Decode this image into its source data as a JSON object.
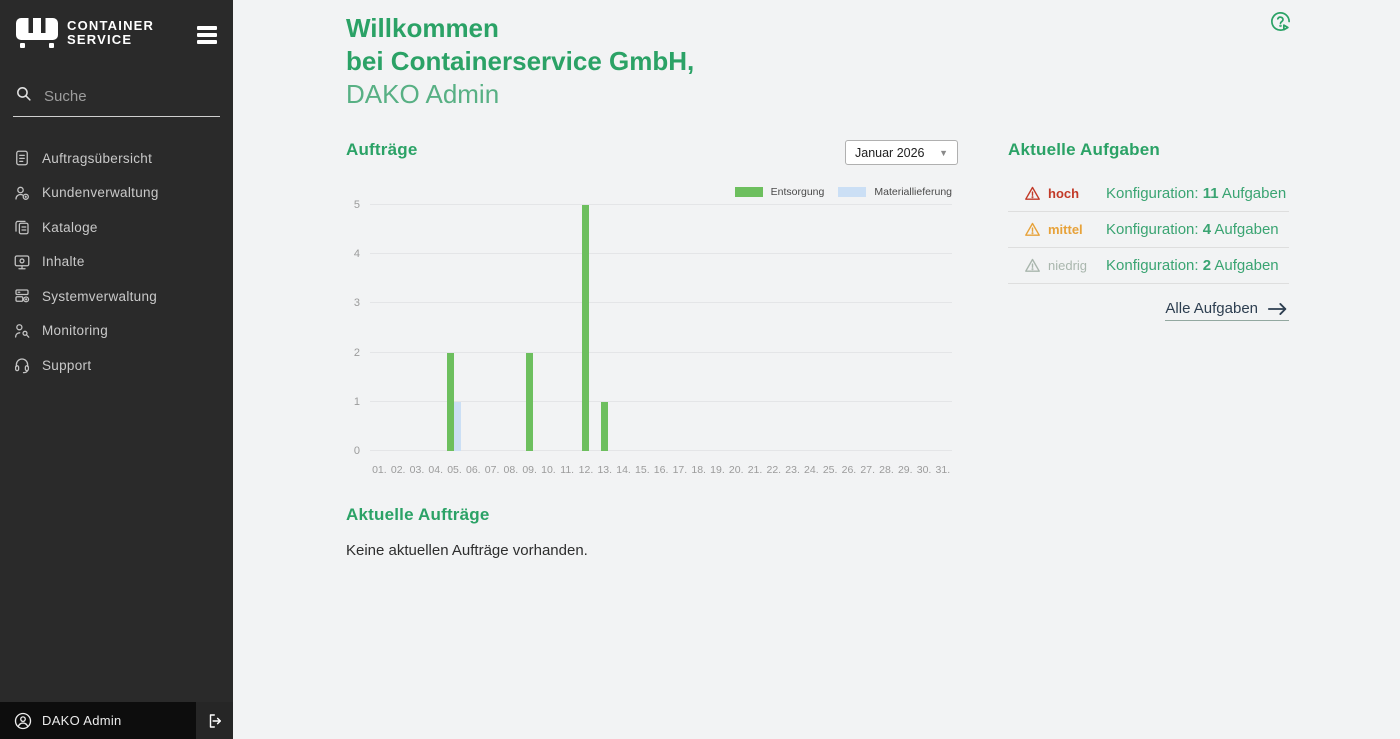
{
  "app": {
    "accent_green": "#2ba266",
    "sidebar_bg": "#2a2a2a"
  },
  "sidebar": {
    "logo": {
      "line1": "CONTAINER",
      "line2": "SERVICE"
    },
    "search_placeholder": "Suche",
    "items": [
      {
        "id": "auftragsuebersicht",
        "label": "Auftragsübersicht",
        "icon": "document"
      },
      {
        "id": "kundenverwaltung",
        "label": "Kundenverwaltung",
        "icon": "users"
      },
      {
        "id": "kataloge",
        "label": "Kataloge",
        "icon": "copy"
      },
      {
        "id": "inhalte",
        "label": "Inhalte",
        "icon": "monitor"
      },
      {
        "id": "systemverwaltung",
        "label": "Systemverwaltung",
        "icon": "server"
      },
      {
        "id": "monitoring",
        "label": "Monitoring",
        "icon": "activity"
      },
      {
        "id": "support",
        "label": "Support",
        "icon": "headset"
      }
    ],
    "user": {
      "name": "DAKO Admin"
    }
  },
  "main": {
    "welcome": {
      "line1": "Willkommen",
      "line2": "bei Containerservice GmbH,",
      "line3": "DAKO Admin"
    },
    "orders": {
      "title": "Aufträge",
      "month": "Januar 2026"
    },
    "tasks": {
      "title": "Aktuelle Aufgaben",
      "rows": [
        {
          "severity": "hoch",
          "severity_color": "#c23a28",
          "label": "Konfiguration:",
          "count": "11",
          "suffix": "Aufgaben"
        },
        {
          "severity": "mittel",
          "severity_color": "#e7a23a",
          "label": "Konfiguration:",
          "count": "4",
          "suffix": "Aufgaben"
        },
        {
          "severity": "niedrig",
          "severity_color": "#a9b6ad",
          "label": "Konfiguration:",
          "count": "2",
          "suffix": "Aufgaben"
        }
      ],
      "link_label": "Alle Aufgaben"
    },
    "current_orders": {
      "title": "Aktuelle Aufträge",
      "empty_message": "Keine aktuellen Aufträge vorhanden."
    }
  },
  "chart_data": {
    "type": "bar",
    "title": "Aufträge",
    "categories": [
      "01.",
      "02.",
      "03.",
      "04.",
      "05.",
      "06.",
      "07.",
      "08.",
      "09.",
      "10.",
      "11.",
      "12.",
      "13.",
      "14.",
      "15.",
      "16.",
      "17.",
      "18.",
      "19.",
      "20.",
      "21.",
      "22.",
      "23.",
      "24.",
      "25.",
      "26.",
      "27.",
      "28.",
      "29.",
      "30.",
      "31."
    ],
    "series": [
      {
        "name": "Entsorgung",
        "color": "#6dbf5e",
        "values": [
          0,
          0,
          0,
          0,
          2,
          0,
          0,
          0,
          2,
          0,
          0,
          5,
          1,
          0,
          0,
          0,
          0,
          0,
          0,
          0,
          0,
          0,
          0,
          0,
          0,
          0,
          0,
          0,
          0,
          0,
          0
        ]
      },
      {
        "name": "Materiallieferung",
        "color": "#cbdff5",
        "values": [
          0,
          0,
          0,
          0,
          1,
          0,
          0,
          0,
          0,
          0,
          0,
          0,
          0,
          0,
          0,
          0,
          0,
          0,
          0,
          0,
          0,
          0,
          0,
          0,
          0,
          0,
          0,
          0,
          0,
          0,
          0
        ]
      }
    ],
    "xlabel": "",
    "ylabel": "",
    "ylim": [
      0,
      5
    ],
    "yticks": [
      0,
      1,
      2,
      3,
      4,
      5
    ],
    "grid": true,
    "legend_position": "top-right"
  }
}
